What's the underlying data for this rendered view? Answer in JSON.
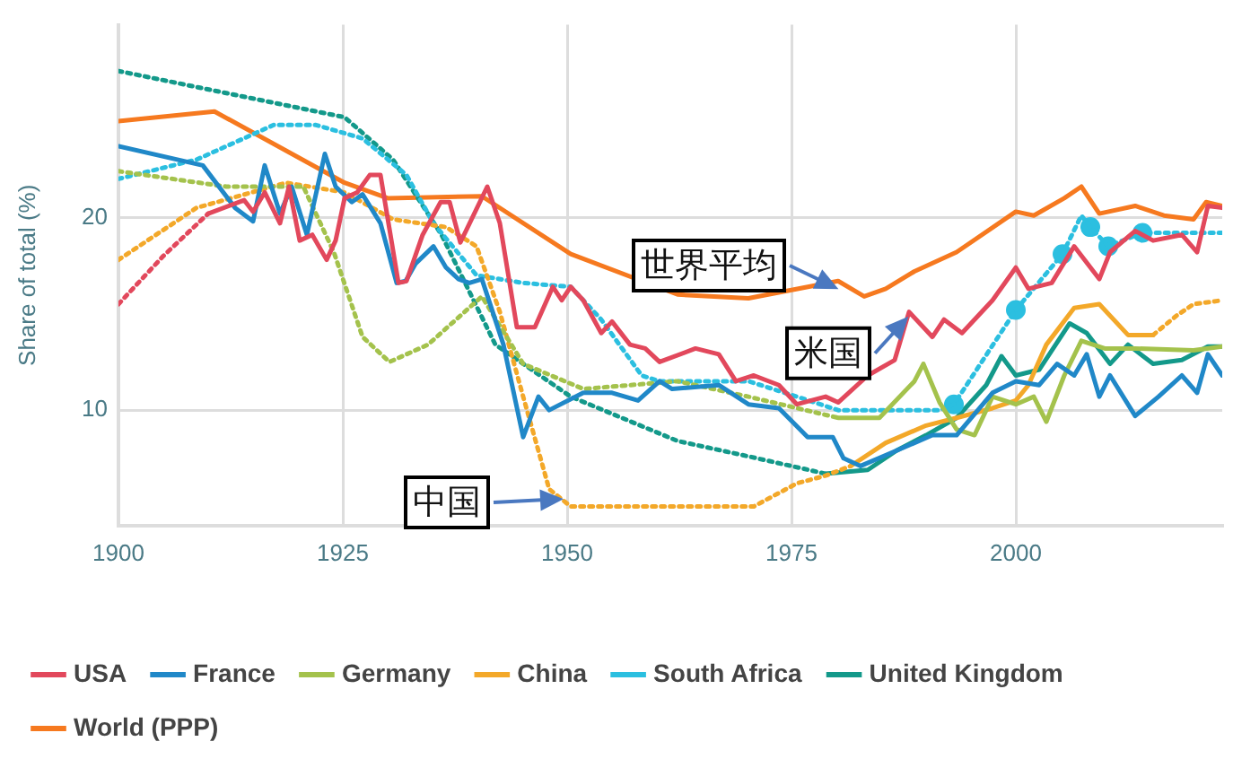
{
  "chart_data": {
    "type": "line",
    "ylabel": "Share of total (%)",
    "xlim": [
      1900,
      2023
    ],
    "xticks": [
      1900,
      1925,
      1950,
      1975,
      2000
    ],
    "ylim": [
      4,
      30
    ],
    "yticks": [
      10,
      20
    ],
    "grid": true,
    "legend": "bottom",
    "marker": "none",
    "annotations": [
      {
        "text": "世界平均",
        "x": 1980.6,
        "y": 16.2
      },
      {
        "text": "米国",
        "x": 1988.3,
        "y": 15.0
      },
      {
        "text": "中国",
        "x": 1950,
        "y": 5.4
      }
    ],
    "series": [
      {
        "name": "USA",
        "color": "#e2485c",
        "line_style": "solid",
        "x": [
          1910,
          1914,
          1915,
          1916.3,
          1918,
          1919,
          1920.2,
          1921.6,
          1923.2,
          1924.2,
          1925.2,
          1926.6,
          1928,
          1929.2,
          1931.2,
          1932.1,
          1933.9,
          1935.9,
          1936.9,
          1938.1,
          1941.1,
          1942.5,
          1944.4,
          1946.4,
          1948.4,
          1949.4,
          1950.4,
          1951.8,
          1953.8,
          1955,
          1957,
          1958.7,
          1960.3,
          1964.3,
          1966.9,
          1968.8,
          1970.8,
          1973.6,
          1975.6,
          1978.8,
          1980.2,
          1983.5,
          1986.5,
          1988.1,
          1990.7,
          1992,
          1994,
          1997.4,
          2000,
          2001.4,
          2004,
          2006.5,
          2009.3,
          2010.5,
          2013.3,
          2015.3,
          2018.5,
          2020.2,
          2021.4,
          2023
        ],
        "values": [
          20.2,
          20.9,
          20.3,
          21.3,
          19.7,
          21.6,
          18.8,
          19.1,
          17.8,
          18.8,
          21.0,
          21.3,
          22.2,
          22.2,
          16.6,
          16.7,
          19.1,
          20.8,
          20.8,
          18.7,
          21.6,
          19.7,
          14.3,
          14.3,
          16.4,
          15.7,
          16.4,
          15.7,
          14.0,
          14.6,
          13.4,
          13.2,
          12.5,
          13.2,
          12.9,
          11.5,
          11.8,
          11.3,
          10.3,
          10.7,
          10.4,
          11.8,
          12.6,
          15.1,
          13.8,
          14.7,
          14.0,
          15.7,
          17.4,
          16.3,
          16.6,
          18.5,
          16.8,
          18.2,
          19.3,
          18.8,
          19.1,
          18.2,
          20.6,
          20.5
        ]
      },
      {
        "color": "#e2485c",
        "line_style": "dotted",
        "x": [
          1900,
          1905,
          1910
        ],
        "values": [
          15.5,
          18.0,
          20.2
        ]
      },
      {
        "name": "France",
        "color": "#2088c8",
        "line_style": "solid",
        "x": [
          1900,
          1909.4,
          1913,
          1915,
          1916.3,
          1918,
          1919.3,
          1921,
          1923,
          1924.2,
          1926,
          1927.2,
          1929.2,
          1931,
          1932,
          1933.1,
          1935.1,
          1936.5,
          1937.9,
          1939.1,
          1940.5,
          1942.9,
          1945.1,
          1946.8,
          1948,
          1951.8,
          1955,
          1957.9,
          1960.3,
          1961.7,
          1966.9,
          1970.2,
          1973.6,
          1976.8,
          1979.6,
          1980.8,
          1982.7,
          1986.7,
          1990.7,
          1993.4,
          1997.4,
          2000,
          2002.6,
          2004.6,
          2006.5,
          2007.9,
          2009.3,
          2010.5,
          2013.3,
          2015.9,
          2018.5,
          2020.2,
          2021.4,
          2023
        ],
        "values": [
          23.7,
          22.7,
          20.5,
          19.8,
          22.7,
          20.2,
          21.6,
          19.1,
          23.3,
          21.6,
          20.8,
          21.2,
          19.7,
          16.6,
          16.7,
          17.6,
          18.5,
          17.4,
          16.8,
          16.6,
          16.8,
          13.4,
          8.6,
          10.7,
          10.0,
          10.9,
          10.9,
          10.5,
          11.5,
          11.1,
          11.3,
          10.3,
          10.1,
          8.6,
          8.6,
          7.5,
          7.1,
          7.9,
          8.7,
          8.7,
          10.9,
          11.5,
          11.3,
          12.4,
          11.8,
          12.9,
          10.7,
          11.8,
          9.7,
          10.7,
          11.8,
          10.9,
          12.9,
          11.8
        ]
      },
      {
        "name": "Germany",
        "color": "#a4c24c",
        "line_style": "dotted",
        "x": [
          1900,
          1912,
          1920.6,
          1924,
          1927.2,
          1930.2,
          1934.5,
          1940.5,
          1945.1,
          1951.8,
          1962.3,
          1970.2,
          1980.2
        ],
        "values": [
          22.4,
          21.6,
          21.6,
          18.2,
          13.8,
          12.5,
          13.4,
          15.9,
          12.4,
          11.1,
          11.5,
          10.7,
          9.6
        ]
      },
      {
        "color": "#a4c24c",
        "line_style": "solid",
        "x": [
          1980.2,
          1984.8,
          1988.7,
          1989.7,
          1991.5,
          1993.4,
          1995.4,
          1997.4,
          2000,
          2002,
          2003.4,
          2005.4,
          2007.3,
          2009.9,
          2013.3,
          2019.8,
          2023
        ],
        "values": [
          9.6,
          9.6,
          11.5,
          12.4,
          10.4,
          9.0,
          8.7,
          10.7,
          10.3,
          10.7,
          9.4,
          11.8,
          13.6,
          13.2,
          13.2,
          13.1,
          13.3
        ]
      },
      {
        "name": "China",
        "color": "#f3a829",
        "line_style": "dotted",
        "x": [
          1900,
          1908.7,
          1918.7,
          1925.2,
          1930.6,
          1936.5,
          1939.9,
          1942.5,
          1945.1,
          1948,
          1950.4,
          1970.8,
          1975.6,
          1978.8,
          1981.6
        ],
        "values": [
          17.8,
          20.5,
          21.8,
          21.3,
          19.9,
          19.5,
          18.5,
          15.1,
          10.7,
          5.9,
          5.0,
          5.0,
          6.2,
          6.6,
          7.1
        ]
      },
      {
        "color": "#f3a829",
        "line_style": "solid",
        "x": [
          1981.6,
          1985.5,
          1990,
          1993.4,
          1997.4,
          2000,
          2001.4,
          2003.4,
          2006.5,
          2009.3,
          2012.5,
          2015.3
        ],
        "values": [
          7.1,
          8.3,
          9.2,
          9.6,
          10.1,
          10.5,
          11.3,
          13.4,
          15.3,
          15.5,
          13.9,
          13.9
        ]
      },
      {
        "color": "#f3a829",
        "line_style": "dotted",
        "x": [
          2015.3,
          2017.9,
          2019.8,
          2023
        ],
        "values": [
          13.9,
          14.9,
          15.5,
          15.7
        ]
      },
      {
        "name": "South Africa",
        "color": "#2bbfe0",
        "line_style": "dotted",
        "x": [
          1900,
          1908.7,
          1917.3,
          1922,
          1927.2,
          1932.1,
          1935.1,
          1939.9,
          1945.1,
          1950.4,
          1953.8,
          1958.3,
          1960.3,
          1970.2,
          1975.6,
          1980.2,
          1991.5,
          1993.1,
          2000,
          2005.2,
          2007.3,
          2008.3,
          2010.3,
          2014.1,
          2023
        ],
        "values": [
          22.0,
          23.0,
          24.8,
          24.8,
          24.1,
          22.2,
          19.7,
          17.0,
          16.6,
          16.4,
          14.7,
          11.8,
          11.5,
          11.5,
          10.7,
          10.0,
          10.0,
          10.3,
          15.2,
          18.1,
          20.1,
          19.5,
          18.5,
          19.2,
          19.2
        ]
      },
      {
        "type": "scatter",
        "marker": "circle",
        "color": "#2bbfe0",
        "x": [
          1993.1,
          2000,
          2005.2,
          2008.3,
          2010.3,
          2014.1
        ],
        "values": [
          10.3,
          15.2,
          18.1,
          19.5,
          18.5,
          19.2
        ]
      },
      {
        "name": "United Kingdom",
        "color": "#13998a",
        "line_style": "dotted",
        "x": [
          1900,
          1925.2,
          1930.6,
          1936,
          1942,
          1950.4,
          1962.3,
          1970.2,
          1978.8
        ],
        "values": [
          27.6,
          25.2,
          23.0,
          19.1,
          13.4,
          10.7,
          8.4,
          7.6,
          6.7
        ]
      },
      {
        "color": "#13998a",
        "line_style": "solid",
        "x": [
          1978.8,
          1983.5,
          1986.7,
          1990,
          1993.4,
          1996.7,
          1998.4,
          2000,
          2002.6,
          2006,
          2007.9,
          2010.5,
          2012.5,
          2015.3,
          2018.5,
          2021.4,
          2023
        ],
        "values": [
          6.7,
          6.9,
          7.9,
          8.7,
          9.6,
          11.3,
          12.8,
          11.8,
          12.1,
          14.5,
          14.0,
          12.4,
          13.4,
          12.4,
          12.6,
          13.3,
          13.3
        ]
      },
      {
        "name": "World (PPP)",
        "color": "#f6791f",
        "line_style": "solid",
        "x": [
          1900,
          1910.7,
          1925.2,
          1930,
          1940.5,
          1950.4,
          1962.3,
          1970.2,
          1980.2,
          1983.1,
          1985.5,
          1988.7,
          1993.4,
          2000,
          2002,
          2005.4,
          2007.3,
          2009.3,
          2013.3,
          2016.5,
          2019.8,
          2021.2,
          2023
        ],
        "values": [
          25.0,
          25.5,
          21.8,
          21.0,
          21.1,
          18.1,
          16.0,
          15.8,
          16.7,
          15.9,
          16.3,
          17.2,
          18.2,
          20.3,
          20.1,
          21.0,
          21.6,
          20.2,
          20.6,
          20.1,
          19.9,
          20.8,
          20.6
        ]
      }
    ]
  }
}
